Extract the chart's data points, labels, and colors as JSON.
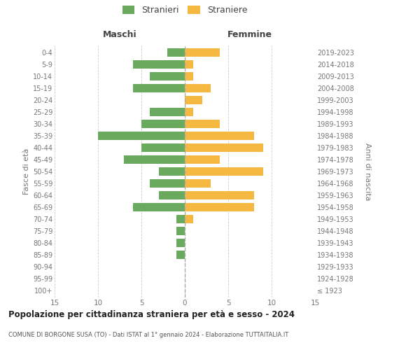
{
  "age_groups": [
    "100+",
    "95-99",
    "90-94",
    "85-89",
    "80-84",
    "75-79",
    "70-74",
    "65-69",
    "60-64",
    "55-59",
    "50-54",
    "45-49",
    "40-44",
    "35-39",
    "30-34",
    "25-29",
    "20-24",
    "15-19",
    "10-14",
    "5-9",
    "0-4"
  ],
  "birth_years": [
    "≤ 1923",
    "1924-1928",
    "1929-1933",
    "1934-1938",
    "1939-1943",
    "1944-1948",
    "1949-1953",
    "1954-1958",
    "1959-1963",
    "1964-1968",
    "1969-1973",
    "1974-1978",
    "1979-1983",
    "1984-1988",
    "1989-1993",
    "1994-1998",
    "1999-2003",
    "2004-2008",
    "2009-2013",
    "2014-2018",
    "2019-2023"
  ],
  "maschi": [
    0,
    0,
    0,
    1,
    1,
    1,
    1,
    6,
    3,
    4,
    3,
    7,
    5,
    10,
    5,
    4,
    0,
    6,
    4,
    6,
    2
  ],
  "femmine": [
    0,
    0,
    0,
    0,
    0,
    0,
    1,
    8,
    8,
    3,
    9,
    4,
    9,
    8,
    4,
    1,
    2,
    3,
    1,
    1,
    4
  ],
  "maschi_color": "#6aaa5f",
  "femmine_color": "#f5b942",
  "grid_color": "#cccccc",
  "zeroline_color": "#aaaaaa",
  "axis_tick_color": "#777777",
  "header_color": "#444444",
  "title": "Popolazione per cittadinanza straniera per età e sesso - 2024",
  "subtitle": "COMUNE DI BORGONE SUSA (TO) - Dati ISTAT al 1° gennaio 2024 - Elaborazione TUTTAITALIA.IT",
  "label_maschi": "Maschi",
  "label_femmine": "Femmine",
  "ylabel_left": "Fasce di età",
  "ylabel_right": "Anni di nascita",
  "legend_maschi": "Stranieri",
  "legend_femmine": "Straniere",
  "xlim": 15,
  "bg": "#ffffff"
}
